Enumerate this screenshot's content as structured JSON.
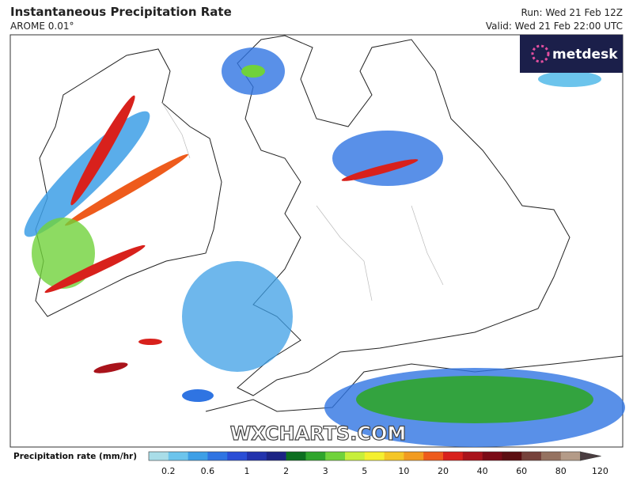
{
  "header": {
    "title": "Instantaneous Precipitation Rate",
    "model": "AROME 0.01°",
    "run": "Run: Wed 21 Feb 12Z",
    "valid": "Valid: Wed 21 Feb 22:00 UTC"
  },
  "logo": "metdesk",
  "watermark": "WXCHARTS.COM",
  "colorbar": {
    "label": "Precipitation rate (mm/hr)",
    "ticks": [
      0.2,
      0.6,
      1,
      2,
      3,
      5,
      10,
      20,
      40,
      60,
      80,
      120
    ],
    "colors": [
      "#a9dde8",
      "#6cc4ec",
      "#3d9fe6",
      "#2f74e2",
      "#2a4ed6",
      "#2233ad",
      "#1b2384",
      "#0c6f20",
      "#2fa52c",
      "#70d23b",
      "#c7ef3b",
      "#f4f030",
      "#f4c626",
      "#f29b20",
      "#ee5b1c",
      "#d8211c",
      "#a9131b",
      "#7b0b16",
      "#5c0e11",
      "#76423b",
      "#957260",
      "#b49b88",
      "#4a3d40"
    ]
  }
}
